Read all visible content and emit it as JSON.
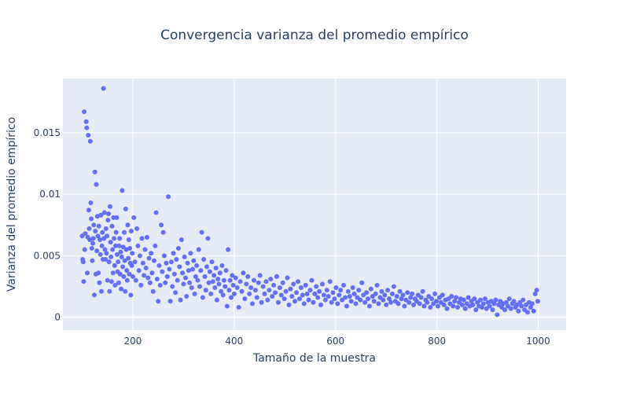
{
  "chart_data": {
    "type": "scatter",
    "title": "Convergencia varianza del promedio empírico",
    "xlabel": "Tamaño de la muestra",
    "ylabel": "Varianza del promedio empírico",
    "xlim": [
      62,
      1055
    ],
    "ylim": [
      -0.00105,
      0.0194
    ],
    "xticks": [
      200,
      400,
      600,
      800,
      1000
    ],
    "yticks": [
      0,
      0.005,
      0.01,
      0.015
    ],
    "ytick_labels": [
      "0",
      "0.005",
      "0.01",
      "0.015"
    ],
    "grid": true,
    "marker_color": "#636efa",
    "plot_bg": "#e5ecf6",
    "points": [
      [
        100,
        0.0066
      ],
      [
        101,
        0.0047
      ],
      [
        102,
        0.0045
      ],
      [
        103,
        0.0029
      ],
      [
        104,
        0.0167
      ],
      [
        105,
        0.0055
      ],
      [
        106,
        0.0068
      ],
      [
        108,
        0.0159
      ],
      [
        109,
        0.0154
      ],
      [
        110,
        0.0036
      ],
      [
        111,
        0.0065
      ],
      [
        112,
        0.0148
      ],
      [
        113,
        0.0087
      ],
      [
        114,
        0.0072
      ],
      [
        115,
        0.0063
      ],
      [
        116,
        0.0143
      ],
      [
        117,
        0.0093
      ],
      [
        118,
        0.008
      ],
      [
        119,
        0.0056
      ],
      [
        120,
        0.0046
      ],
      [
        121,
        0.006
      ],
      [
        122,
        0.0064
      ],
      [
        123,
        0.0075
      ],
      [
        124,
        0.0018
      ],
      [
        125,
        0.0118
      ],
      [
        126,
        0.007
      ],
      [
        127,
        0.0035
      ],
      [
        128,
        0.0108
      ],
      [
        129,
        0.0054
      ],
      [
        130,
        0.0082
      ],
      [
        131,
        0.0066
      ],
      [
        132,
        0.0036
      ],
      [
        133,
        0.0074
      ],
      [
        134,
        0.0028
      ],
      [
        135,
        0.0063
      ],
      [
        136,
        0.0051
      ],
      [
        137,
        0.0083
      ],
      [
        138,
        0.0021
      ],
      [
        139,
        0.0058
      ],
      [
        140,
        0.0069
      ],
      [
        141,
        0.0047
      ],
      [
        142,
        0.0186
      ],
      [
        143,
        0.0064
      ],
      [
        144,
        0.0085
      ],
      [
        145,
        0.0055
      ],
      [
        146,
        0.0047
      ],
      [
        147,
        0.0072
      ],
      [
        148,
        0.0052
      ],
      [
        149,
        0.0066
      ],
      [
        150,
        0.003
      ],
      [
        151,
        0.0079
      ],
      [
        152,
        0.0084
      ],
      [
        153,
        0.0045
      ],
      [
        154,
        0.0021
      ],
      [
        155,
        0.009
      ],
      [
        156,
        0.0061
      ],
      [
        157,
        0.0049
      ],
      [
        158,
        0.0029
      ],
      [
        159,
        0.0074
      ],
      [
        160,
        0.0055
      ],
      [
        161,
        0.0036
      ],
      [
        162,
        0.0081
      ],
      [
        163,
        0.0064
      ],
      [
        164,
        0.0042
      ],
      [
        165,
        0.0026
      ],
      [
        166,
        0.0058
      ],
      [
        167,
        0.0069
      ],
      [
        168,
        0.0081
      ],
      [
        169,
        0.0051
      ],
      [
        170,
        0.0037
      ],
      [
        171,
        0.0045
      ],
      [
        172,
        0.0028
      ],
      [
        173,
        0.0058
      ],
      [
        174,
        0.0064
      ],
      [
        175,
        0.0035
      ],
      [
        176,
        0.0053
      ],
      [
        177,
        0.0023
      ],
      [
        178,
        0.0049
      ],
      [
        179,
        0.0103
      ],
      [
        180,
        0.0041
      ],
      [
        181,
        0.0057
      ],
      [
        182,
        0.0033
      ],
      [
        183,
        0.0069
      ],
      [
        184,
        0.0046
      ],
      [
        185,
        0.0021
      ],
      [
        186,
        0.0088
      ],
      [
        187,
        0.0055
      ],
      [
        188,
        0.0038
      ],
      [
        189,
        0.003
      ],
      [
        190,
        0.0075
      ],
      [
        191,
        0.0048
      ],
      [
        192,
        0.0063
      ],
      [
        193,
        0.0035
      ],
      [
        194,
        0.0056
      ],
      [
        195,
        0.0044
      ],
      [
        196,
        0.0018
      ],
      [
        197,
        0.007
      ],
      [
        198,
        0.0042
      ],
      [
        199,
        0.0052
      ],
      [
        200,
        0.0033
      ],
      [
        202,
        0.0081
      ],
      [
        204,
        0.0045
      ],
      [
        206,
        0.003
      ],
      [
        208,
        0.0072
      ],
      [
        210,
        0.0058
      ],
      [
        212,
        0.0038
      ],
      [
        214,
        0.005
      ],
      [
        216,
        0.0026
      ],
      [
        218,
        0.0064
      ],
      [
        220,
        0.0044
      ],
      [
        222,
        0.0034
      ],
      [
        224,
        0.0055
      ],
      [
        226,
        0.004
      ],
      [
        228,
        0.0065
      ],
      [
        230,
        0.0032
      ],
      [
        232,
        0.0048
      ],
      [
        234,
        0.0028
      ],
      [
        236,
        0.0052
      ],
      [
        238,
        0.0036
      ],
      [
        240,
        0.0021
      ],
      [
        242,
        0.0046
      ],
      [
        244,
        0.0058
      ],
      [
        246,
        0.0085
      ],
      [
        248,
        0.0031
      ],
      [
        250,
        0.0013
      ],
      [
        252,
        0.0042
      ],
      [
        254,
        0.0026
      ],
      [
        256,
        0.0075
      ],
      [
        258,
        0.0037
      ],
      [
        260,
        0.0069
      ],
      [
        262,
        0.005
      ],
      [
        264,
        0.0028
      ],
      [
        266,
        0.0044
      ],
      [
        268,
        0.0033
      ],
      [
        270,
        0.0098
      ],
      [
        272,
        0.0039
      ],
      [
        274,
        0.0013
      ],
      [
        276,
        0.0045
      ],
      [
        278,
        0.0025
      ],
      [
        280,
        0.0052
      ],
      [
        282,
        0.0035
      ],
      [
        284,
        0.002
      ],
      [
        286,
        0.0047
      ],
      [
        288,
        0.003
      ],
      [
        290,
        0.0056
      ],
      [
        292,
        0.0041
      ],
      [
        294,
        0.0014
      ],
      [
        296,
        0.0063
      ],
      [
        298,
        0.0036
      ],
      [
        300,
        0.0027
      ],
      [
        302,
        0.0049
      ],
      [
        304,
        0.0032
      ],
      [
        306,
        0.0017
      ],
      [
        308,
        0.0044
      ],
      [
        310,
        0.0038
      ],
      [
        312,
        0.0028
      ],
      [
        314,
        0.0052
      ],
      [
        316,
        0.0024
      ],
      [
        318,
        0.0039
      ],
      [
        320,
        0.0046
      ],
      [
        322,
        0.0019
      ],
      [
        324,
        0.0033
      ],
      [
        326,
        0.0042
      ],
      [
        328,
        0.003
      ],
      [
        330,
        0.0055
      ],
      [
        332,
        0.0025
      ],
      [
        334,
        0.0038
      ],
      [
        336,
        0.0069
      ],
      [
        338,
        0.0016
      ],
      [
        340,
        0.0047
      ],
      [
        342,
        0.0033
      ],
      [
        344,
        0.0022
      ],
      [
        346,
        0.0041
      ],
      [
        348,
        0.0064
      ],
      [
        350,
        0.0028
      ],
      [
        352,
        0.0037
      ],
      [
        354,
        0.0019
      ],
      [
        356,
        0.0045
      ],
      [
        358,
        0.0029
      ],
      [
        360,
        0.0034
      ],
      [
        362,
        0.0024
      ],
      [
        364,
        0.004
      ],
      [
        366,
        0.0014
      ],
      [
        368,
        0.0031
      ],
      [
        370,
        0.0027
      ],
      [
        372,
        0.0036
      ],
      [
        374,
        0.0021
      ],
      [
        376,
        0.0042
      ],
      [
        378,
        0.0018
      ],
      [
        380,
        0.003
      ],
      [
        382,
        0.0025
      ],
      [
        384,
        0.0038
      ],
      [
        386,
        0.0009
      ],
      [
        388,
        0.0055
      ],
      [
        390,
        0.0022
      ],
      [
        392,
        0.003
      ],
      [
        394,
        0.0016
      ],
      [
        396,
        0.0034
      ],
      [
        398,
        0.0026
      ],
      [
        400,
        0.0019
      ],
      [
        403,
        0.0032
      ],
      [
        406,
        0.0024
      ],
      [
        409,
        0.0008
      ],
      [
        412,
        0.0029
      ],
      [
        415,
        0.0021
      ],
      [
        418,
        0.0036
      ],
      [
        421,
        0.0015
      ],
      [
        424,
        0.0027
      ],
      [
        427,
        0.0033
      ],
      [
        430,
        0.0019
      ],
      [
        433,
        0.0024
      ],
      [
        436,
        0.0011
      ],
      [
        439,
        0.003
      ],
      [
        442,
        0.0022
      ],
      [
        445,
        0.0016
      ],
      [
        448,
        0.0028
      ],
      [
        451,
        0.0034
      ],
      [
        454,
        0.0012
      ],
      [
        457,
        0.0025
      ],
      [
        460,
        0.0019
      ],
      [
        463,
        0.0029
      ],
      [
        466,
        0.0014
      ],
      [
        469,
        0.0022
      ],
      [
        472,
        0.0031
      ],
      [
        475,
        0.0017
      ],
      [
        478,
        0.0026
      ],
      [
        481,
        0.002
      ],
      [
        484,
        0.0033
      ],
      [
        487,
        0.0012
      ],
      [
        490,
        0.0024
      ],
      [
        493,
        0.0018
      ],
      [
        496,
        0.0028
      ],
      [
        499,
        0.0015
      ],
      [
        502,
        0.0021
      ],
      [
        505,
        0.0032
      ],
      [
        508,
        0.001
      ],
      [
        511,
        0.0023
      ],
      [
        514,
        0.0017
      ],
      [
        517,
        0.0027
      ],
      [
        520,
        0.0013
      ],
      [
        523,
        0.002
      ],
      [
        526,
        0.0029
      ],
      [
        529,
        0.0015
      ],
      [
        532,
        0.0024
      ],
      [
        535,
        0.0018
      ],
      [
        538,
        0.0011
      ],
      [
        541,
        0.0026
      ],
      [
        544,
        0.0019
      ],
      [
        547,
        0.0014
      ],
      [
        550,
        0.0022
      ],
      [
        553,
        0.003
      ],
      [
        556,
        0.0012
      ],
      [
        559,
        0.0019
      ],
      [
        562,
        0.0025
      ],
      [
        565,
        0.0016
      ],
      [
        568,
        0.0021
      ],
      [
        571,
        0.001
      ],
      [
        574,
        0.0027
      ],
      [
        577,
        0.0018
      ],
      [
        580,
        0.0014
      ],
      [
        583,
        0.0022
      ],
      [
        586,
        0.0017
      ],
      [
        589,
        0.0029
      ],
      [
        592,
        0.0012
      ],
      [
        595,
        0.002
      ],
      [
        598,
        0.0015
      ],
      [
        601,
        0.0024
      ],
      [
        604,
        0.0011
      ],
      [
        607,
        0.0018
      ],
      [
        610,
        0.0022
      ],
      [
        613,
        0.0014
      ],
      [
        616,
        0.0026
      ],
      [
        619,
        0.0016
      ],
      [
        622,
        0.0009
      ],
      [
        625,
        0.0021
      ],
      [
        628,
        0.0017
      ],
      [
        631,
        0.0013
      ],
      [
        634,
        0.0024
      ],
      [
        637,
        0.0019
      ],
      [
        640,
        0.0011
      ],
      [
        643,
        0.0016
      ],
      [
        646,
        0.0022
      ],
      [
        649,
        0.0014
      ],
      [
        652,
        0.0028
      ],
      [
        655,
        0.0018
      ],
      [
        658,
        0.0012
      ],
      [
        661,
        0.002
      ],
      [
        664,
        0.0015
      ],
      [
        667,
        0.0009
      ],
      [
        670,
        0.0023
      ],
      [
        673,
        0.0017
      ],
      [
        676,
        0.0013
      ],
      [
        679,
        0.0019
      ],
      [
        682,
        0.0026
      ],
      [
        685,
        0.0011
      ],
      [
        688,
        0.0016
      ],
      [
        691,
        0.0021
      ],
      [
        694,
        0.0014
      ],
      [
        697,
        0.0018
      ],
      [
        700,
        0.001
      ],
      [
        703,
        0.0022
      ],
      [
        706,
        0.0015
      ],
      [
        709,
        0.0012
      ],
      [
        712,
        0.0019
      ],
      [
        715,
        0.0025
      ],
      [
        718,
        0.0013
      ],
      [
        721,
        0.0017
      ],
      [
        724,
        0.0011
      ],
      [
        727,
        0.0021
      ],
      [
        730,
        0.0015
      ],
      [
        733,
        0.0018
      ],
      [
        736,
        0.0009
      ],
      [
        739,
        0.0014
      ],
      [
        742,
        0.002
      ],
      [
        745,
        0.0012
      ],
      [
        748,
        0.0016
      ],
      [
        751,
        0.0019
      ],
      [
        754,
        0.001
      ],
      [
        757,
        0.0015
      ],
      [
        760,
        0.0013
      ],
      [
        763,
        0.0018
      ],
      [
        766,
        0.0011
      ],
      [
        769,
        0.0016
      ],
      [
        772,
        0.0021
      ],
      [
        775,
        0.0009
      ],
      [
        778,
        0.0014
      ],
      [
        781,
        0.0012
      ],
      [
        784,
        0.0017
      ],
      [
        787,
        0.0008
      ],
      [
        790,
        0.0015
      ],
      [
        793,
        0.0011
      ],
      [
        796,
        0.0019
      ],
      [
        799,
        0.0013
      ],
      [
        802,
        0.0009
      ],
      [
        805,
        0.0016
      ],
      [
        808,
        0.0012
      ],
      [
        811,
        0.0018
      ],
      [
        814,
        0.001
      ],
      [
        817,
        0.0014
      ],
      [
        820,
        0.0007
      ],
      [
        823,
        0.0015
      ],
      [
        826,
        0.0011
      ],
      [
        829,
        0.0017
      ],
      [
        832,
        0.0009
      ],
      [
        835,
        0.0013
      ],
      [
        838,
        0.0016
      ],
      [
        841,
        0.0008
      ],
      [
        844,
        0.0012
      ],
      [
        847,
        0.0015
      ],
      [
        850,
        0.001
      ],
      [
        853,
        0.0014
      ],
      [
        856,
        0.0007
      ],
      [
        859,
        0.0011
      ],
      [
        862,
        0.0016
      ],
      [
        865,
        0.0009
      ],
      [
        868,
        0.0013
      ],
      [
        871,
        0.001
      ],
      [
        874,
        0.0015
      ],
      [
        877,
        0.0006
      ],
      [
        880,
        0.0012
      ],
      [
        883,
        0.0009
      ],
      [
        886,
        0.0014
      ],
      [
        889,
        0.0008
      ],
      [
        892,
        0.0011
      ],
      [
        895,
        0.0015
      ],
      [
        898,
        0.0007
      ],
      [
        901,
        0.0012
      ],
      [
        904,
        0.0009
      ],
      [
        907,
        0.0013
      ],
      [
        910,
        0.0006
      ],
      [
        913,
        0.0011
      ],
      [
        916,
        0.0014
      ],
      [
        919,
        0.0002
      ],
      [
        922,
        0.001
      ],
      [
        925,
        0.0013
      ],
      [
        928,
        0.0008
      ],
      [
        931,
        0.0011
      ],
      [
        934,
        0.0006
      ],
      [
        937,
        0.0012
      ],
      [
        940,
        0.0009
      ],
      [
        943,
        0.0015
      ],
      [
        946,
        0.0007
      ],
      [
        949,
        0.0011
      ],
      [
        952,
        0.0013
      ],
      [
        955,
        0.0008
      ],
      [
        958,
        0.001
      ],
      [
        961,
        0.0005
      ],
      [
        964,
        0.0012
      ],
      [
        967,
        0.0009
      ],
      [
        970,
        0.0014
      ],
      [
        973,
        0.0006
      ],
      [
        976,
        0.001
      ],
      [
        979,
        0.0004
      ],
      [
        982,
        0.0012
      ],
      [
        985,
        0.0008
      ],
      [
        988,
        0.0011
      ],
      [
        991,
        0.0005
      ],
      [
        994,
        0.0019
      ],
      [
        997,
        0.0022
      ],
      [
        999,
        0.0013
      ]
    ]
  }
}
